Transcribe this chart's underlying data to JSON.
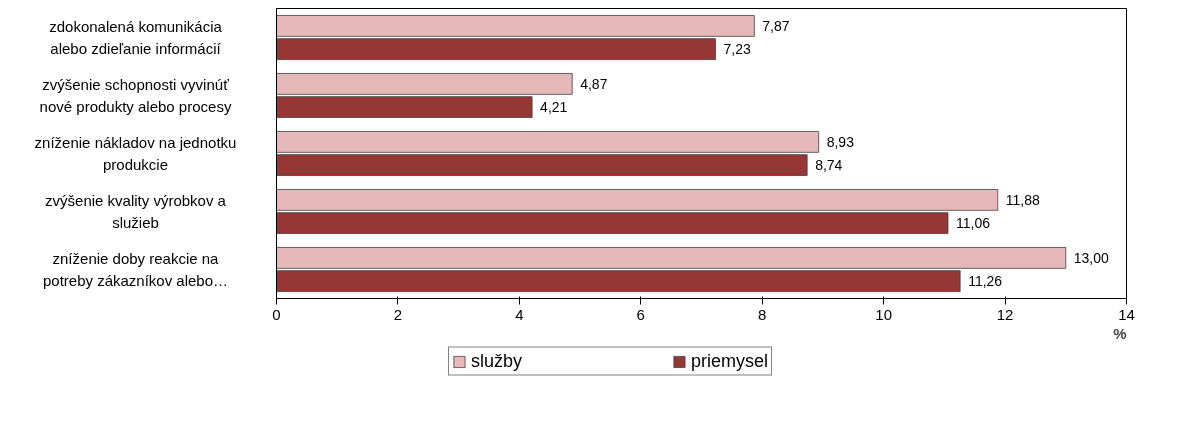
{
  "chart_data": {
    "type": "bar",
    "orientation": "horizontal",
    "xlabel": "%",
    "categories": [
      "zdokonalená komunikácia\nalebo zdieľanie informácií",
      "zvýšenie schopnosti vyvinúť\nnové produkty alebo procesy",
      "zníženie nákladov na jednotku\nprodukcie",
      "zvýšenie kvality výrobkov a\nslužieb",
      "zníženie doby reakcie na\npotreby zákazníkov alebo…"
    ],
    "series": [
      {
        "name": "služby",
        "color": "#e6b9b8",
        "values": [
          7.87,
          4.87,
          8.93,
          11.88,
          13.0
        ],
        "value_labels": [
          "7,87",
          "4,87",
          "8,93",
          "11,88",
          "13,00"
        ]
      },
      {
        "name": "priemysel",
        "color": "#953735",
        "values": [
          7.23,
          4.21,
          8.74,
          11.06,
          11.26
        ],
        "value_labels": [
          "7,23",
          "4,21",
          "8,74",
          "11,06",
          "11,26"
        ]
      }
    ],
    "xlim": [
      0,
      14
    ],
    "xticks": [
      0,
      2,
      4,
      6,
      8,
      10,
      12,
      14
    ],
    "grid": false,
    "legend": "bottom"
  }
}
